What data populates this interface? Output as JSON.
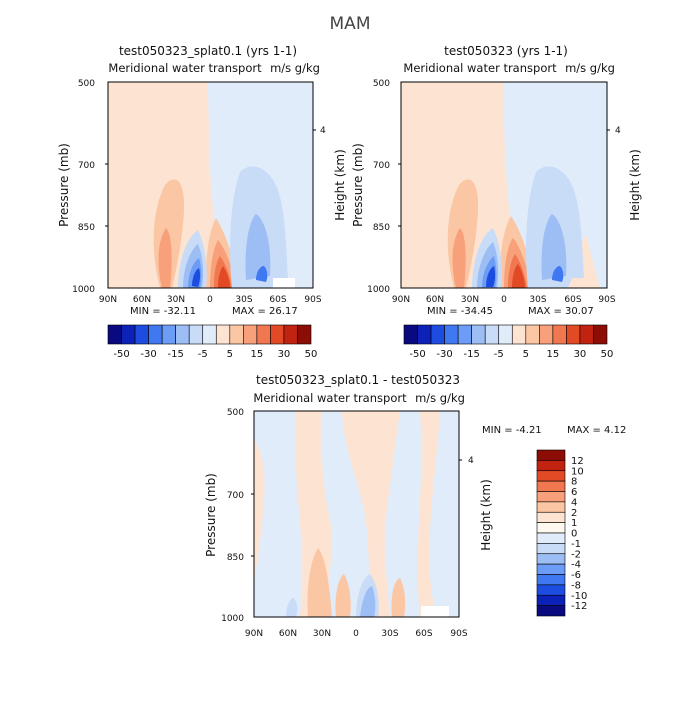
{
  "figure": {
    "season": "MAM",
    "shared_xticks": [
      "90N",
      "60N",
      "30N",
      "0",
      "30S",
      "60S",
      "90S"
    ],
    "shared_yticks": [
      "500",
      "700",
      "850",
      "1000"
    ],
    "height_tick": "4"
  },
  "chart_data": [
    {
      "type": "heatmap",
      "title": "test050323_splat0.1 (yrs 1-1)",
      "subtitle": "Meridional water transport",
      "units": "m/s g/kg",
      "ylabel": "Pressure (mb)",
      "ylabel_right": "Height (km)",
      "xticks": [
        "90N",
        "60N",
        "30N",
        "0",
        "30S",
        "60S",
        "90S"
      ],
      "yticks": [
        "500",
        "700",
        "850",
        "1000"
      ],
      "xlim": [
        90,
        -90
      ],
      "ylim": [
        1000,
        500
      ],
      "min_label": "MIN = -32.11",
      "max_label": "MAX = 26.17",
      "colorbar_levels": [
        "-50",
        "-30",
        "-15",
        "-5",
        "5",
        "15",
        "30",
        "50"
      ],
      "colorbar_colors": [
        "#0a0a80",
        "#0b21b8",
        "#1d4de0",
        "#3f78f0",
        "#6c9cf5",
        "#9dbdf5",
        "#c9dcf7",
        "#e1ecfb",
        "#fde4d2",
        "#fbc6a4",
        "#f7a07a",
        "#f0774f",
        "#e24a26",
        "#c12310",
        "#8c0d05"
      ]
    },
    {
      "type": "heatmap",
      "title": "test050323 (yrs 1-1)",
      "subtitle": "Meridional water transport",
      "units": "m/s g/kg",
      "ylabel": "Pressure (mb)",
      "ylabel_right": "Height (km)",
      "xticks": [
        "90N",
        "60N",
        "30N",
        "0",
        "30S",
        "60S",
        "90S"
      ],
      "yticks": [
        "500",
        "700",
        "850",
        "1000"
      ],
      "xlim": [
        90,
        -90
      ],
      "ylim": [
        1000,
        500
      ],
      "min_label": "MIN = -34.45",
      "max_label": "MAX = 30.07",
      "colorbar_levels": [
        "-50",
        "-30",
        "-15",
        "-5",
        "5",
        "15",
        "30",
        "50"
      ],
      "colorbar_colors": [
        "#0a0a80",
        "#0b21b8",
        "#1d4de0",
        "#3f78f0",
        "#6c9cf5",
        "#9dbdf5",
        "#c9dcf7",
        "#e1ecfb",
        "#fde4d2",
        "#fbc6a4",
        "#f7a07a",
        "#f0774f",
        "#e24a26",
        "#c12310",
        "#8c0d05"
      ]
    },
    {
      "type": "heatmap",
      "title": "test050323_splat0.1 - test050323",
      "subtitle": "Meridional water transport",
      "units": "m/s g/kg",
      "ylabel": "Pressure (mb)",
      "ylabel_right": "Height (km)",
      "xticks": [
        "90N",
        "60N",
        "30N",
        "0",
        "30S",
        "60S",
        "90S"
      ],
      "yticks": [
        "500",
        "700",
        "850",
        "1000"
      ],
      "xlim": [
        90,
        -90
      ],
      "ylim": [
        1000,
        500
      ],
      "min_label": "MIN = -4.21",
      "max_label": "MAX = 4.12",
      "colorbar_levels": [
        "12",
        "10",
        "8",
        "6",
        "4",
        "2",
        "1",
        "0",
        "-1",
        "-2",
        "-4",
        "-6",
        "-8",
        "-10",
        "-12"
      ],
      "colorbar_colors": [
        "#8c0d05",
        "#c12310",
        "#e24a26",
        "#f0774f",
        "#f7a07a",
        "#fbc6a4",
        "#fde4d2",
        "#fff8ef",
        "#e1ecfb",
        "#c9dcf7",
        "#9dbdf5",
        "#6c9cf5",
        "#3f78f0",
        "#1d4de0",
        "#0b21b8",
        "#0a0a80"
      ]
    }
  ]
}
